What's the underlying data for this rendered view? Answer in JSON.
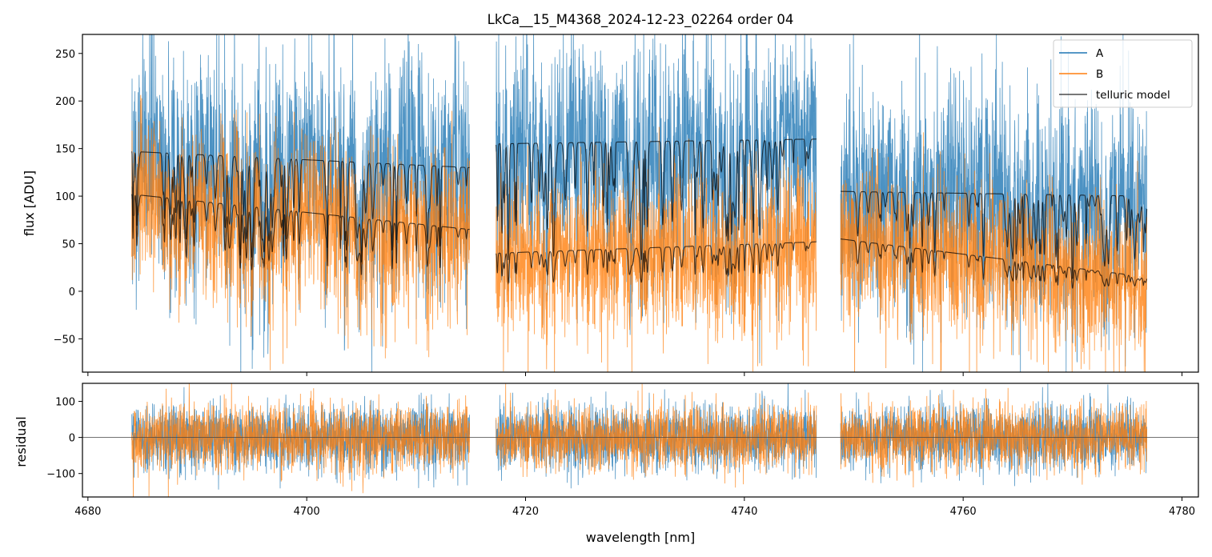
{
  "chart_data": [
    {
      "type": "line",
      "panel": "top",
      "title": "LkCa__15_M4368_2024-12-23_02264  order 04",
      "xlabel": "",
      "ylabel": "flux [ADU]",
      "xlim": [
        4679.5,
        4781.5
      ],
      "ylim": [
        -85,
        270
      ],
      "yticks": [
        -50,
        0,
        50,
        100,
        150,
        200,
        250
      ],
      "ytick_labels": [
        "−50",
        "0",
        "50",
        "100",
        "150",
        "200",
        "250"
      ],
      "xticks": [
        4680,
        4700,
        4720,
        4740,
        4760,
        4780
      ],
      "xtick_labels_shown": false,
      "segments": [
        [
          4684.0,
          4714.9
        ],
        [
          4717.3,
          4746.6
        ],
        [
          4748.8,
          4776.8
        ]
      ],
      "legend": {
        "position": "top-right",
        "entries": [
          "A",
          "B",
          "telluric model"
        ]
      },
      "series": [
        {
          "name": "A",
          "color": "#1f77b4",
          "description": "noisy spectrum, continuum ~150 ADU, noise ~±55",
          "continuum_level": 150,
          "noise_std": 55
        },
        {
          "name": "B",
          "color": "#ff7f0e",
          "description": "noisy spectrum, continuum ~70 ADU, noise ~±40",
          "continuum_level": 70,
          "noise_std": 40
        },
        {
          "name": "telluric model",
          "color": "#000000",
          "alpha": 0.7,
          "description": "absorption-line model traced over A (~155) and over B (~100 decreasing to ~15)",
          "model_A_endpoints": [
            [
              4684.0,
              147
            ],
            [
              4714.9,
              130
            ],
            [
              4717.3,
              155
            ],
            [
              4746.6,
              160
            ],
            [
              4748.8,
              105
            ],
            [
              4776.8,
              100
            ]
          ],
          "model_B_endpoints": [
            [
              4684.0,
              102
            ],
            [
              4714.9,
              65
            ],
            [
              4717.3,
              40
            ],
            [
              4746.6,
              52
            ],
            [
              4748.8,
              55
            ],
            [
              4776.8,
              15
            ]
          ]
        }
      ]
    },
    {
      "type": "line",
      "panel": "bottom",
      "xlabel": "wavelength [nm]",
      "ylabel": "residual",
      "xlim": [
        4679.5,
        4781.5
      ],
      "ylim": [
        -165,
        150
      ],
      "yticks": [
        -100,
        0,
        100
      ],
      "ytick_labels": [
        "−100",
        "0",
        "100"
      ],
      "xticks": [
        4680,
        4700,
        4720,
        4740,
        4760,
        4780
      ],
      "xtick_labels": [
        "4680",
        "4700",
        "4720",
        "4740",
        "4760",
        "4780"
      ],
      "segments": [
        [
          4684.0,
          4714.9
        ],
        [
          4717.3,
          4746.6
        ],
        [
          4748.8,
          4776.8
        ]
      ],
      "zero_line": 0,
      "series": [
        {
          "name": "A",
          "color": "#1f77b4",
          "noise_std": 45
        },
        {
          "name": "B",
          "color": "#ff7f0e",
          "noise_std": 45
        }
      ]
    }
  ]
}
